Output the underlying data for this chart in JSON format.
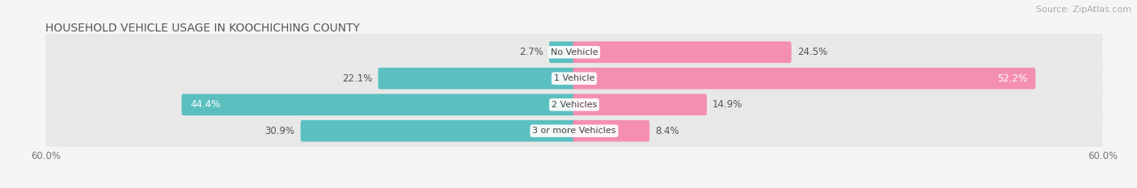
{
  "title": "HOUSEHOLD VEHICLE USAGE IN KOOCHICHING COUNTY",
  "source": "Source: ZipAtlas.com",
  "categories": [
    "No Vehicle",
    "1 Vehicle",
    "2 Vehicles",
    "3 or more Vehicles"
  ],
  "owner_values": [
    2.7,
    22.1,
    44.4,
    30.9
  ],
  "renter_values": [
    24.5,
    52.2,
    14.9,
    8.4
  ],
  "owner_color": "#5bbfc0",
  "renter_color": "#f48fb1",
  "renter_color_dark": "#e91e8c",
  "xlim_left": -60,
  "xlim_right": 60,
  "background_color": "#f5f5f5",
  "row_bg_color": "#e8e8e8",
  "title_fontsize": 10,
  "source_fontsize": 8,
  "axis_fontsize": 8.5,
  "label_fontsize": 8.5,
  "owner_text_white_threshold": 35,
  "renter_text_white_threshold": 45
}
